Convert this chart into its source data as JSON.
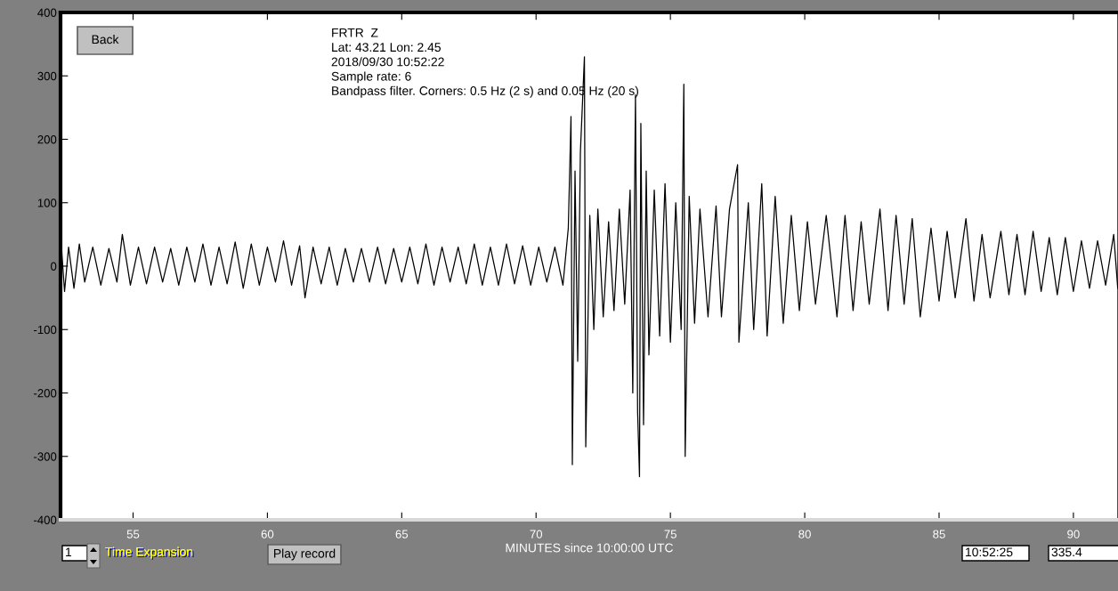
{
  "chart_data": {
    "type": "line",
    "xlabel": "MINUTES since 10:00:00 UTC",
    "annotations": [
      "FRTR  Z",
      "Lat: 43.21 Lon: 2.45",
      "2018/09/30 10:52:22",
      "Sample rate: 6",
      "Bandpass filter. Corners: 0.5 Hz (2 s) and 0.05 Hz (20 s)",
      "Back",
      "1",
      "Time Expansion",
      "Play record",
      "10:52:25",
      "335.4"
    ],
    "xlim": [
      52.3,
      91.66
    ],
    "xticks": [
      55,
      60,
      65,
      70,
      75,
      80,
      85,
      90
    ],
    "ylim": [
      -400,
      400
    ],
    "yticks": [
      -400,
      -300,
      -200,
      -100,
      0,
      100,
      200,
      300,
      400
    ],
    "grid": false,
    "legend": false,
    "marker": "none",
    "line_style": "solid",
    "series": [
      {
        "color": "#000000",
        "x": [
          52.3,
          52.35,
          52.45,
          52.6,
          52.8,
          53.0,
          53.2,
          53.5,
          53.8,
          54.1,
          54.4,
          54.6,
          54.9,
          55.2,
          55.5,
          55.8,
          56.1,
          56.4,
          56.7,
          57.0,
          57.3,
          57.6,
          57.9,
          58.2,
          58.5,
          58.8,
          59.1,
          59.4,
          59.7,
          60.0,
          60.3,
          60.6,
          60.9,
          61.2,
          61.4,
          61.7,
          62.0,
          62.3,
          62.6,
          62.9,
          63.2,
          63.5,
          63.8,
          64.1,
          64.4,
          64.7,
          65.0,
          65.3,
          65.6,
          65.9,
          66.2,
          66.5,
          66.8,
          67.1,
          67.4,
          67.7,
          68.0,
          68.3,
          68.6,
          68.9,
          69.2,
          69.5,
          69.8,
          70.1,
          70.4,
          70.7,
          71.0,
          71.2,
          71.3,
          71.35,
          71.45,
          71.55,
          71.65,
          71.8,
          71.85,
          72.0,
          72.15,
          72.3,
          72.5,
          72.7,
          72.9,
          73.1,
          73.3,
          73.5,
          73.6,
          73.7,
          73.78,
          73.85,
          73.9,
          74.0,
          74.1,
          74.2,
          74.4,
          74.6,
          74.8,
          75.0,
          75.2,
          75.4,
          75.5,
          75.55,
          75.7,
          75.9,
          76.1,
          76.4,
          76.7,
          76.9,
          77.2,
          77.5,
          77.55,
          77.9,
          78.1,
          78.4,
          78.6,
          78.9,
          79.2,
          79.5,
          79.8,
          80.1,
          80.4,
          80.8,
          81.2,
          81.5,
          81.8,
          82.1,
          82.4,
          82.8,
          83.1,
          83.4,
          83.7,
          84.0,
          84.3,
          84.7,
          85.0,
          85.3,
          85.6,
          86.0,
          86.3,
          86.6,
          86.9,
          87.3,
          87.6,
          87.9,
          88.2,
          88.5,
          88.8,
          89.1,
          89.4,
          89.7,
          90.0,
          90.3,
          90.6,
          90.9,
          91.2,
          91.5,
          91.65
        ],
        "values": [
          83,
          20,
          -40,
          30,
          -35,
          35,
          -25,
          30,
          -30,
          28,
          -25,
          50,
          -30,
          30,
          -28,
          30,
          -25,
          28,
          -30,
          30,
          -25,
          35,
          -30,
          30,
          -28,
          38,
          -35,
          35,
          -30,
          30,
          -25,
          40,
          -30,
          32,
          -50,
          30,
          -28,
          30,
          -30,
          28,
          -25,
          28,
          -25,
          30,
          -28,
          28,
          -25,
          30,
          -28,
          35,
          -30,
          30,
          -25,
          30,
          -28,
          35,
          -30,
          30,
          -30,
          35,
          -28,
          32,
          -30,
          30,
          -25,
          30,
          -30,
          60,
          236,
          -313,
          150,
          -150,
          180,
          330,
          -285,
          80,
          -100,
          90,
          -80,
          70,
          -70,
          90,
          -60,
          120,
          -200,
          270,
          -230,
          -332,
          225,
          -250,
          150,
          -140,
          120,
          -110,
          130,
          -120,
          100,
          -100,
          287,
          -300,
          110,
          -90,
          90,
          -80,
          95,
          -80,
          90,
          160,
          -120,
          100,
          -100,
          130,
          -110,
          110,
          -90,
          80,
          -70,
          70,
          -60,
          80,
          -80,
          80,
          -70,
          70,
          -60,
          90,
          -70,
          80,
          -60,
          75,
          -80,
          60,
          -55,
          55,
          -50,
          75,
          -55,
          50,
          -50,
          55,
          -45,
          50,
          -45,
          55,
          -40,
          45,
          -45,
          45,
          -40,
          40,
          -35,
          40,
          -30,
          50,
          -35
        ]
      }
    ]
  }
}
